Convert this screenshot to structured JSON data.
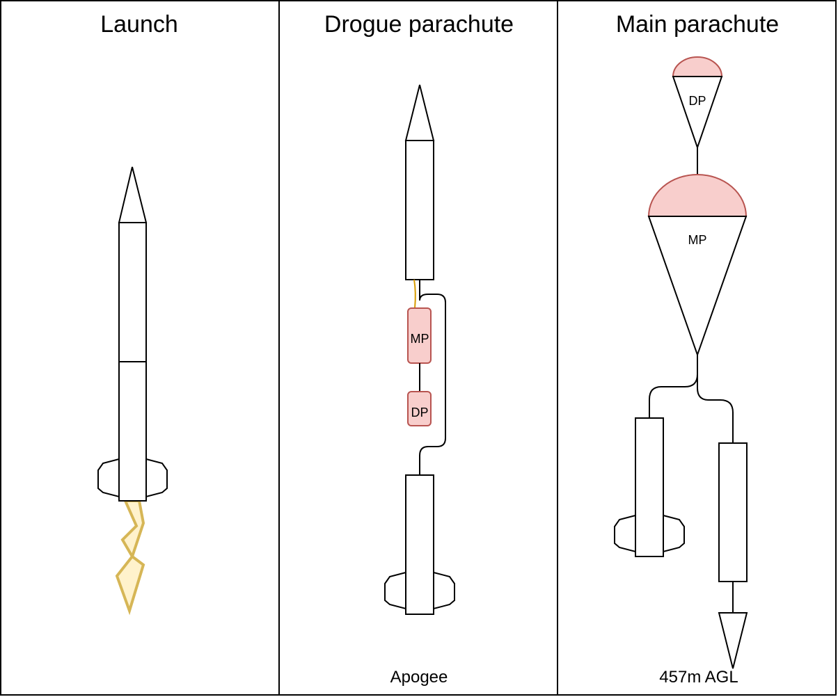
{
  "panels": [
    {
      "title": "Launch",
      "caption": ""
    },
    {
      "title": "Drogue parachute",
      "caption": "Apogee"
    },
    {
      "title": "Main parachute",
      "caption": "457m AGL"
    }
  ],
  "labels": {
    "main_parachute": "MP",
    "drogue_parachute": "DP"
  },
  "colors": {
    "parachute_fill": "#f8cecc",
    "parachute_stroke": "#b85450",
    "flame_fill": "#fff2cc",
    "flame_stroke": "#d6b656",
    "cord_yellow": "#d79b00"
  }
}
